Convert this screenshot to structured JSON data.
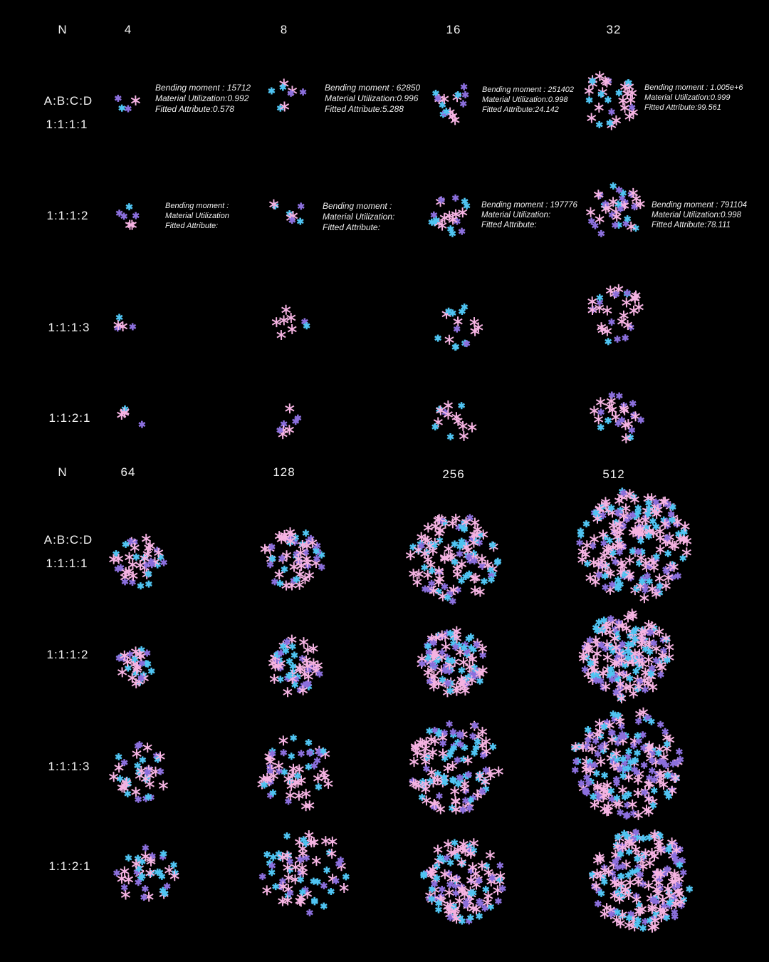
{
  "colors": {
    "background": "#000000",
    "pink": "#f5b3e2",
    "purple": "#8b6fdc",
    "cyan": "#4fc4f2"
  },
  "top": {
    "n_label": "N",
    "columns": [
      "4",
      "8",
      "16",
      "32"
    ],
    "ratio_header": "A:B:C:D",
    "rows": [
      "1:1:1:1",
      "1:1:1:2",
      "1:1:1:3",
      "1:1:2:1"
    ]
  },
  "bottom": {
    "n_label": "N",
    "columns": [
      "64",
      "128",
      "256",
      "512"
    ],
    "ratio_header": "A:B:C:D",
    "rows": [
      "1:1:1:1",
      "1:1:1:2",
      "1:1:1:3",
      "1:1:2:1"
    ]
  },
  "annotations": [
    {
      "bm": "Bending moment :  15712",
      "mu": "Material Utilization:0.992",
      "fa": "Fitted Attribute:0.578"
    },
    {
      "bm": "Bending moment :  62850",
      "mu": "Material Utilization:0.996",
      "fa": "Fitted Attribute:5.288"
    },
    {
      "bm": "Bending moment :  251402",
      "mu": "Material Utilization:0.998",
      "fa": "Fitted Attribute:24.142"
    },
    {
      "bm": "Bending moment :  1.005e+6",
      "mu": "Material Utilization:0.999",
      "fa": "Fitted Attribute:99.561"
    },
    {
      "bm": "Bending moment :",
      "mu": "Material Utilization",
      "fa": "Fitted Attribute:"
    },
    {
      "bm": "Bending moment :",
      "mu": "Material Utilization:",
      "fa": "Fitted Attribute:"
    },
    {
      "bm": "Bending moment :  197776",
      "mu": "Material Utilization:",
      "fa": "Fitted Attribute:"
    },
    {
      "bm": "Bending moment :  791104",
      "mu": "Material Utilization:0.998",
      "fa": "Fitted Attribute:78.111"
    }
  ]
}
